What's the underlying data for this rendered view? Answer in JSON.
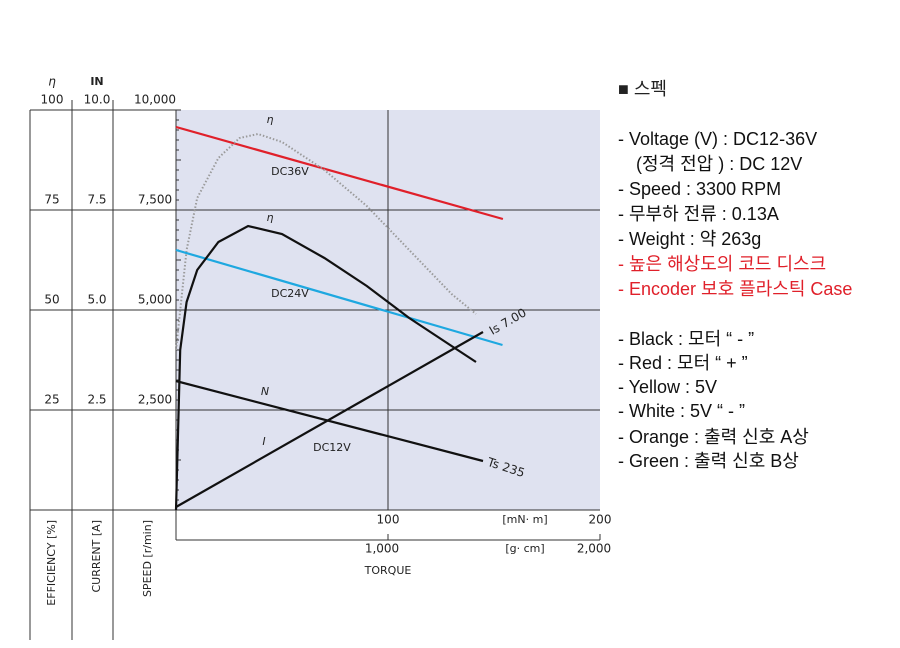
{
  "chart_data": {
    "type": "line",
    "efficiency_label": "η",
    "current_label": "IN",
    "efficiency_axis_title": "EFFICIENCY [%]",
    "current_axis_title": "CURRENT [A]",
    "speed_axis_title": "SPEED [r/min]",
    "efficiency_lim": [
      0,
      100
    ],
    "efficiency_ticks": [
      25,
      50,
      75,
      100
    ],
    "current_lim": [
      0,
      10
    ],
    "current_ticks": [
      {
        "value": 2.5,
        "label": "2.5"
      },
      {
        "value": 5,
        "label": "5.0"
      },
      {
        "value": 7.5,
        "label": "7.5"
      },
      {
        "value": 10,
        "label": "10.0"
      }
    ],
    "speed_lim": [
      0,
      10000
    ],
    "speed_ticks": [
      {
        "value": 2500,
        "label": "2,500"
      },
      {
        "value": 5000,
        "label": "5,000"
      },
      {
        "value": 7500,
        "label": "7,500"
      },
      {
        "value": 10000,
        "label": "10,000"
      }
    ],
    "xlim": [
      0,
      200
    ],
    "xticks": [
      100,
      200
    ],
    "x_unit": "[mN· m]",
    "x2lim": [
      0,
      2000
    ],
    "x2ticks": [
      {
        "value": 1000,
        "label": "1,000"
      },
      {
        "value": 2000,
        "label": "2,000"
      }
    ],
    "x2_unit": "[g· cm]",
    "xlabel": "TORQUE",
    "series": [
      {
        "name": "DC36V",
        "color": "#e0202a",
        "axis": "speed",
        "x": [
          0,
          154.2
        ],
        "values": [
          9575,
          7275
        ]
      },
      {
        "name": "η",
        "color": "#9a9a9a",
        "axis": "efficiency",
        "dashed": true,
        "x": [
          0,
          5,
          10,
          20,
          30,
          38.7,
          50,
          70,
          90,
          110,
          130,
          141.5
        ],
        "values": [
          40,
          65,
          78,
          88,
          93,
          94,
          92,
          85,
          76,
          65,
          54,
          49
        ]
      },
      {
        "name": "DC24V",
        "color": "#1ea8e0",
        "axis": "speed",
        "x": [
          0,
          154
        ],
        "values": [
          6500,
          4125
        ]
      },
      {
        "name": "η",
        "color": "#111111",
        "axis": "efficiency",
        "x": [
          0,
          2,
          5,
          10,
          20,
          34,
          50,
          70,
          90,
          100,
          110,
          130,
          141.5
        ],
        "values": [
          0,
          40,
          52,
          60,
          67,
          71,
          69,
          63,
          56,
          52,
          48,
          41,
          37
        ]
      },
      {
        "name": "N",
        "color": "#111111",
        "axis": "speed",
        "x": [
          0,
          144.8
        ],
        "values": [
          3225,
          1225
        ]
      },
      {
        "name": "I",
        "color": "#111111",
        "axis": "current",
        "x": [
          0,
          144.8
        ],
        "values": [
          0.075,
          4.45
        ]
      }
    ],
    "annotations": [
      "DC12V",
      "Is 7.00",
      "Ts 235"
    ]
  },
  "spec": {
    "heading": "■ 스펙",
    "items": [
      {
        "text": "- Voltage (V) : DC12-36V",
        "color": "#111111"
      },
      {
        "text": "(정격 전압 ) : DC 12V",
        "color": "#111111"
      },
      {
        "text": "- Speed :  3300 RPM",
        "color": "#111111"
      },
      {
        "text": "- 무부하 전류 : 0.13A",
        "color": "#111111"
      },
      {
        "text": "- Weight : 약 263g",
        "color": "#111111"
      },
      {
        "text": "- 높은 해상도의 코드 디스크",
        "color": "#e0202a"
      },
      {
        "text": "- Encoder 보호 플라스틱 Case",
        "color": "#e0202a"
      },
      {
        "text": "- Black : 모터 “ - ”",
        "color": "#111111"
      },
      {
        "text": "- Red : 모터 “ + ”",
        "color": "#111111"
      },
      {
        "text": "- Yellow : 5V",
        "color": "#111111"
      },
      {
        "text": "- White : 5V “ - ”",
        "color": "#111111"
      },
      {
        "text": "- Orange : 출력 신호 A상",
        "color": "#111111"
      },
      {
        "text": "- Green : 출력 신호 B상",
        "color": "#111111"
      }
    ]
  }
}
